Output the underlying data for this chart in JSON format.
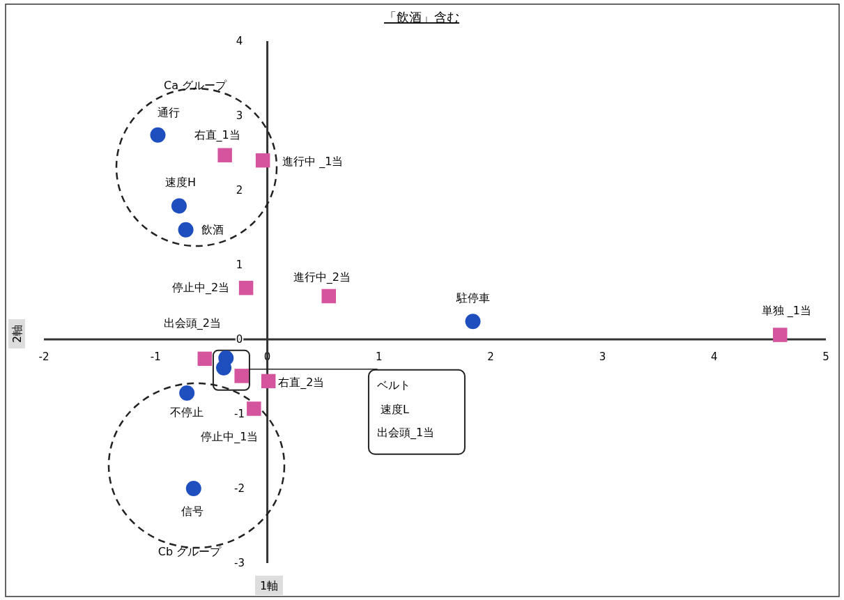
{
  "chart_data": {
    "type": "scatter",
    "title": "「飲酒」含む",
    "xlabel": "1軸",
    "ylabel": "2軸",
    "xlim": [
      -2,
      5
    ],
    "xticks": [
      -2,
      -1,
      0,
      1,
      2,
      3,
      4,
      5
    ],
    "ylim": [
      -3,
      4
    ],
    "yticks": [
      4,
      3,
      2,
      1,
      0,
      -1,
      -2,
      -3
    ],
    "grid": false,
    "series": [
      {
        "color": "#1f4fbf",
        "marker": "circle",
        "x": [
          -0.98,
          -0.79,
          -0.73,
          1.84,
          -0.37,
          -0.39,
          -0.72,
          -0.66
        ],
        "values": [
          2.74,
          1.79,
          1.47,
          0.24,
          -0.25,
          -0.38,
          -0.72,
          -2.0
        ]
      },
      {
        "color": "#d4559e",
        "marker": "square",
        "x": [
          -0.38,
          -0.04,
          -0.19,
          0.55,
          4.59,
          -0.56,
          -0.23,
          0.01,
          -0.12
        ],
        "values": [
          2.47,
          2.4,
          0.69,
          0.58,
          0.06,
          -0.26,
          -0.49,
          -0.56,
          -0.93
        ]
      }
    ],
    "annotations": [
      {
        "text": "通行",
        "x": -0.98,
        "y": 2.74
      },
      {
        "text": "速度H",
        "x": -0.79,
        "y": 1.79
      },
      {
        "text": "飲酒",
        "x": -0.73,
        "y": 1.47
      },
      {
        "text": "駐停車",
        "x": 1.84,
        "y": 0.24
      },
      {
        "text": "不停止",
        "x": -0.72,
        "y": -0.72
      },
      {
        "text": "信号",
        "x": -0.66,
        "y": -2.0
      },
      {
        "text": "右直_1当",
        "x": -0.38,
        "y": 2.47
      },
      {
        "text": "進行中 _1当",
        "x": -0.04,
        "y": 2.4
      },
      {
        "text": "停止中_2当",
        "x": -0.19,
        "y": 0.69
      },
      {
        "text": "進行中_2当",
        "x": 0.55,
        "y": 0.58
      },
      {
        "text": "単独 _1当",
        "x": 4.59,
        "y": 0.06
      },
      {
        "text": "出会頭_2当",
        "x": -0.56,
        "y": -0.26
      },
      {
        "text": "右直_2当",
        "x": 0.01,
        "y": -0.56
      },
      {
        "text": "停止中_1当",
        "x": -0.12,
        "y": -0.93
      },
      "Ca グループ",
      "Cb グループ",
      {
        "text": "ベルト",
        "x": -0.16,
        "y": -0.4
      },
      "速度L",
      "出会頭_1当"
    ]
  }
}
